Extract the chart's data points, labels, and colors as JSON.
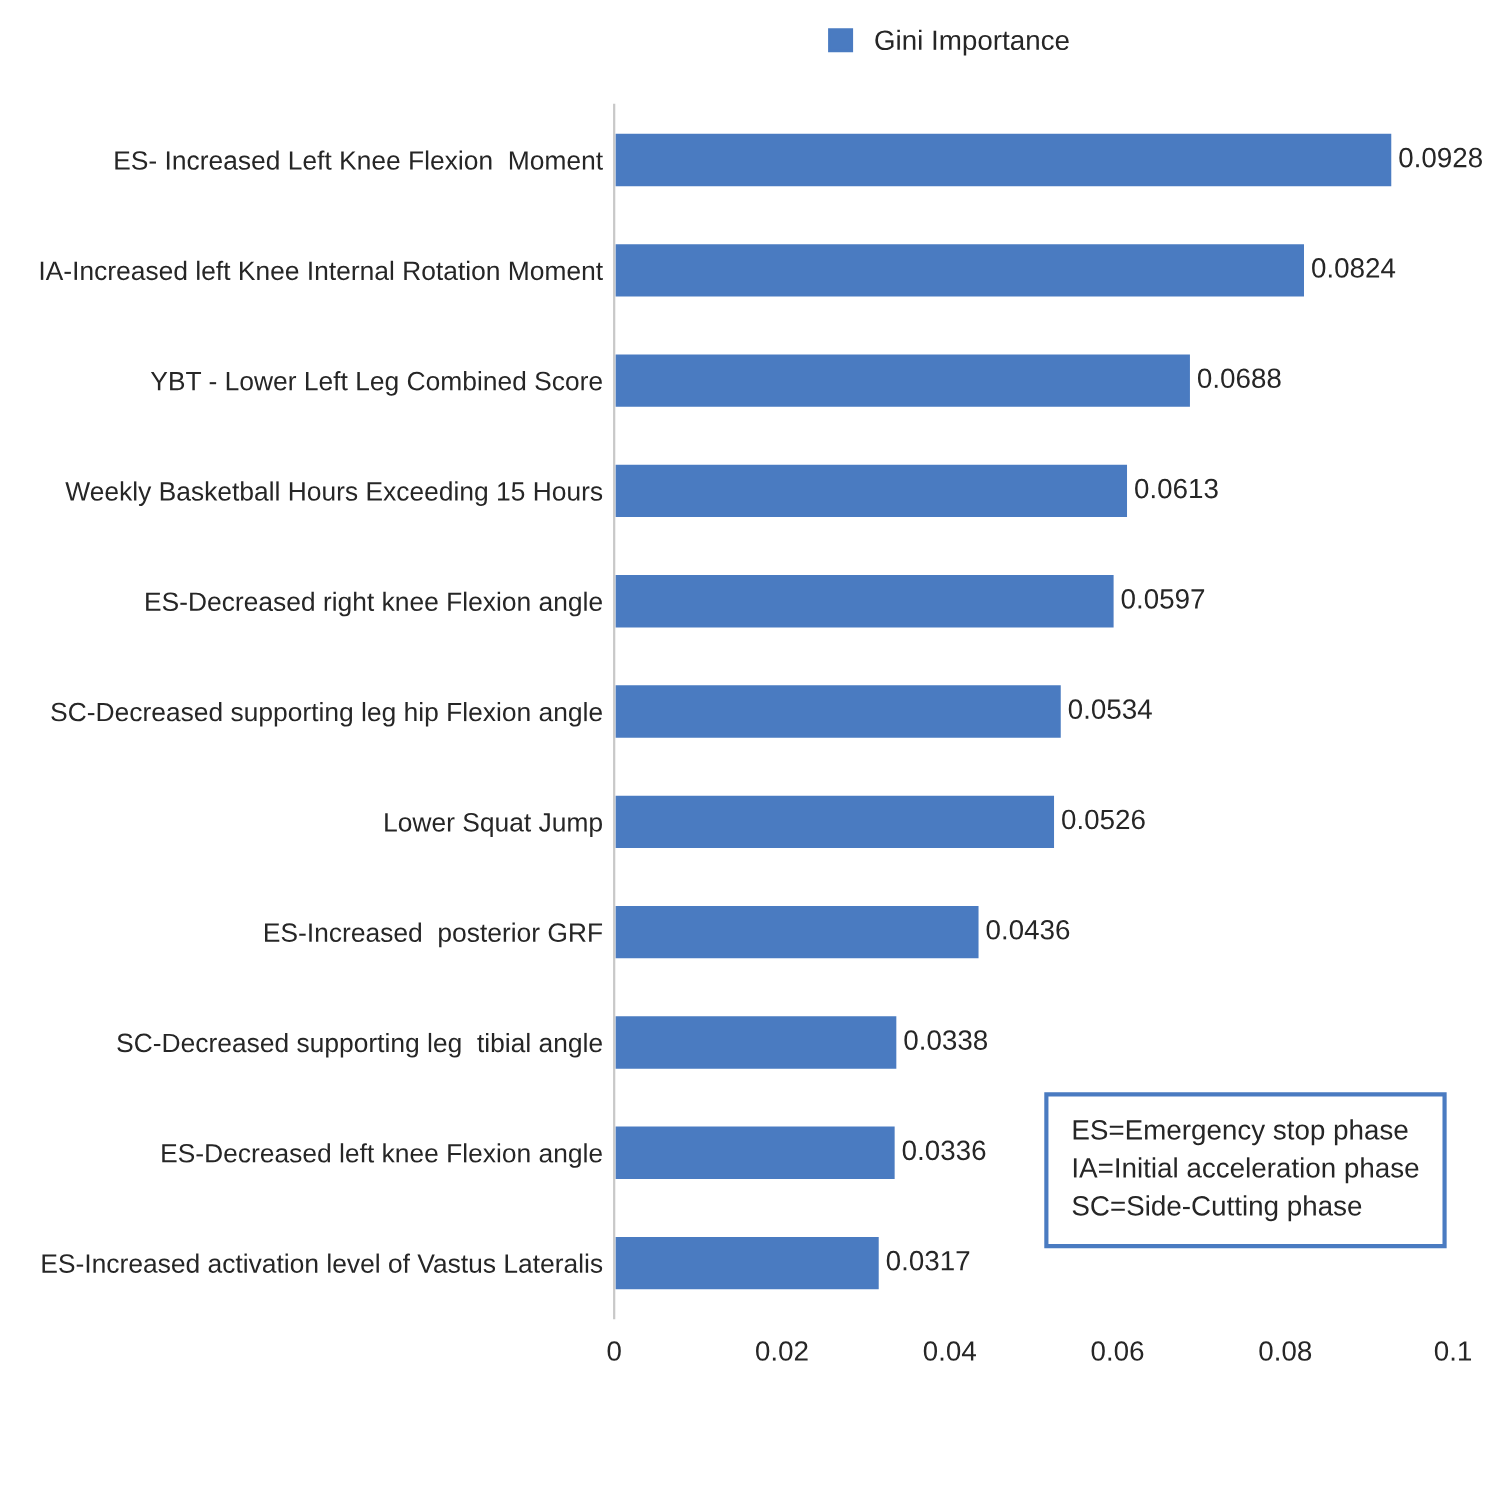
{
  "chart_data": {
    "type": "bar",
    "orientation": "horizontal",
    "categories": [
      "ES- Increased Left Knee Flexion  Moment",
      "IA-Increased left Knee Internal Rotation Moment",
      "YBT - Lower Left Leg Combined Score",
      "Weekly Basketball Hours Exceeding 15 Hours",
      "ES-Decreased right knee Flexion angle",
      "SC-Decreased supporting leg hip Flexion angle",
      "Lower Squat Jump",
      "ES-Increased  posterior GRF",
      "SC-Decreased supporting leg  tibial angle",
      "ES-Decreased left knee Flexion angle",
      "ES-Increased activation level of Vastus Lateralis"
    ],
    "series": [
      {
        "name": "Gini Importance",
        "color": "#4a7bc1",
        "values": [
          0.0928,
          0.0824,
          0.0688,
          0.0613,
          0.0597,
          0.0534,
          0.0526,
          0.0436,
          0.0338,
          0.0336,
          0.0317
        ]
      }
    ],
    "xlim": [
      0,
      0.1
    ],
    "xticks": [
      0,
      0.02,
      0.04,
      0.06,
      0.08,
      0.1
    ],
    "data_labels": true,
    "legend": "top",
    "grid": false,
    "annotations": [
      "ES=Emergency stop phase",
      "IA=Initial acceleration phase",
      "SC=Side-Cutting phase"
    ]
  }
}
